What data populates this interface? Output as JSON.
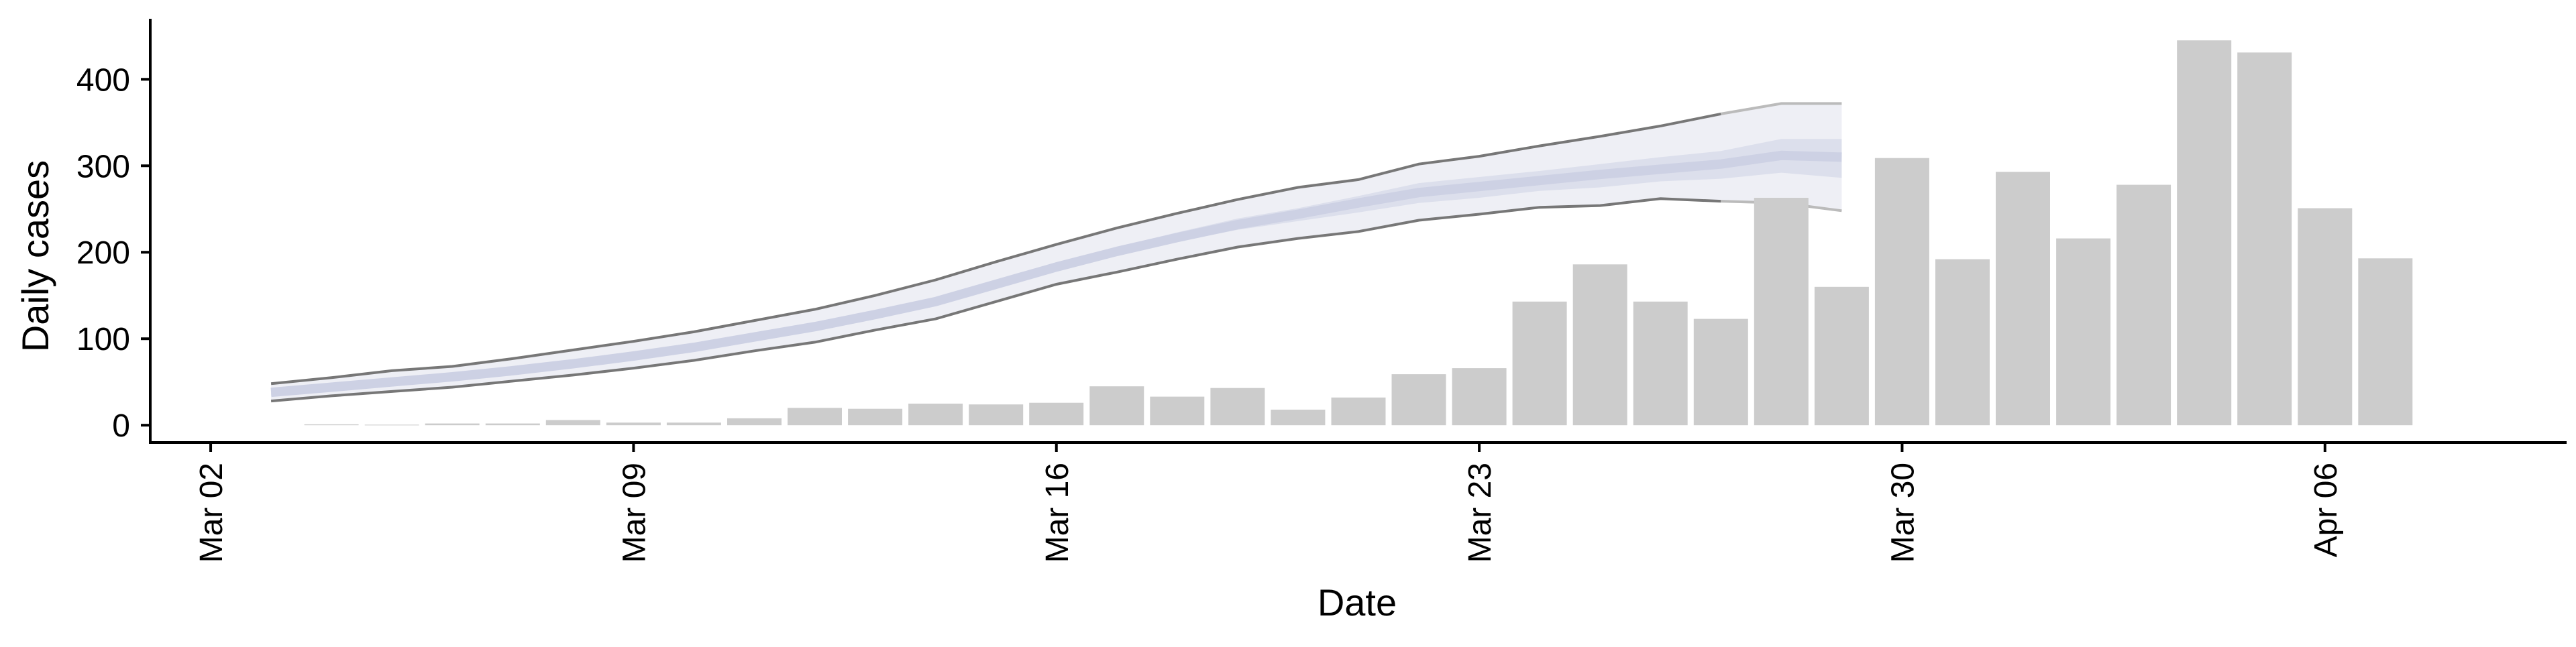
{
  "chart_data": {
    "type": "bar",
    "xlabel": "Date",
    "ylabel": "Daily cases",
    "ylim": [
      -20,
      470
    ],
    "y_ticks": [
      0,
      100,
      200,
      300,
      400
    ],
    "x_ticks": [
      {
        "date": "2020-03-02",
        "label": "Mar 02"
      },
      {
        "date": "2020-03-09",
        "label": "Mar 09"
      },
      {
        "date": "2020-03-16",
        "label": "Mar 16"
      },
      {
        "date": "2020-03-23",
        "label": "Mar 23"
      },
      {
        "date": "2020-03-30",
        "label": "Mar 30"
      },
      {
        "date": "2020-04-06",
        "label": "Apr 06"
      }
    ],
    "xlim": [
      "2020-03-01",
      "2020-04-10"
    ],
    "grid": false,
    "legend": "none",
    "bars": {
      "color": "#cccccc",
      "data": [
        {
          "date": "2020-03-04",
          "value": 1
        },
        {
          "date": "2020-03-05",
          "value": 0
        },
        {
          "date": "2020-03-06",
          "value": 2
        },
        {
          "date": "2020-03-07",
          "value": 2
        },
        {
          "date": "2020-03-08",
          "value": 6
        },
        {
          "date": "2020-03-09",
          "value": 3
        },
        {
          "date": "2020-03-10",
          "value": 3
        },
        {
          "date": "2020-03-11",
          "value": 8
        },
        {
          "date": "2020-03-12",
          "value": 20
        },
        {
          "date": "2020-03-13",
          "value": 19
        },
        {
          "date": "2020-03-14",
          "value": 25
        },
        {
          "date": "2020-03-15",
          "value": 24
        },
        {
          "date": "2020-03-16",
          "value": 26
        },
        {
          "date": "2020-03-17",
          "value": 45
        },
        {
          "date": "2020-03-18",
          "value": 33
        },
        {
          "date": "2020-03-19",
          "value": 43
        },
        {
          "date": "2020-03-20",
          "value": 18
        },
        {
          "date": "2020-03-21",
          "value": 32
        },
        {
          "date": "2020-03-22",
          "value": 59
        },
        {
          "date": "2020-03-23",
          "value": 66
        },
        {
          "date": "2020-03-24",
          "value": 143
        },
        {
          "date": "2020-03-25",
          "value": 186
        },
        {
          "date": "2020-03-26",
          "value": 143
        },
        {
          "date": "2020-03-27",
          "value": 123
        },
        {
          "date": "2020-03-28",
          "value": 263
        },
        {
          "date": "2020-03-29",
          "value": 160
        },
        {
          "date": "2020-03-30",
          "value": 309
        },
        {
          "date": "2020-03-31",
          "value": 192
        },
        {
          "date": "2020-04-01",
          "value": 293
        },
        {
          "date": "2020-04-02",
          "value": 216
        },
        {
          "date": "2020-04-03",
          "value": 278
        },
        {
          "date": "2020-04-04",
          "value": 445
        },
        {
          "date": "2020-04-05",
          "value": 431
        },
        {
          "date": "2020-04-06",
          "value": 251
        },
        {
          "date": "2020-04-07",
          "value": 193
        }
      ]
    },
    "ribbon": {
      "dates": [
        "2020-03-03",
        "2020-03-04",
        "2020-03-05",
        "2020-03-06",
        "2020-03-07",
        "2020-03-08",
        "2020-03-09",
        "2020-03-10",
        "2020-03-11",
        "2020-03-12",
        "2020-03-13",
        "2020-03-14",
        "2020-03-15",
        "2020-03-16",
        "2020-03-17",
        "2020-03-18",
        "2020-03-19",
        "2020-03-20",
        "2020-03-21",
        "2020-03-22",
        "2020-03-23",
        "2020-03-24",
        "2020-03-25",
        "2020-03-26",
        "2020-03-27",
        "2020-03-28",
        "2020-03-29"
      ],
      "outer_lower": [
        28,
        34,
        39,
        44,
        51,
        58,
        66,
        75,
        86,
        96,
        110,
        123,
        143,
        163,
        177,
        192,
        206,
        216,
        224,
        237,
        244,
        252,
        254,
        262,
        259,
        257,
        248
      ],
      "outer_upper": [
        48,
        55,
        63,
        68,
        77,
        87,
        97,
        108,
        121,
        134,
        150,
        168,
        189,
        209,
        228,
        245,
        261,
        275,
        284,
        302,
        311,
        323,
        334,
        346,
        360,
        372,
        372
      ],
      "inner_lower": [
        34,
        41,
        47,
        52,
        60,
        68,
        76,
        86,
        98,
        110,
        124,
        139,
        158,
        178,
        196,
        212,
        226,
        236,
        246,
        257,
        263,
        271,
        275,
        282,
        285,
        292,
        286
      ],
      "inner_upper": [
        42,
        48,
        54,
        60,
        67,
        75,
        84,
        94,
        106,
        118,
        133,
        148,
        168,
        188,
        206,
        223,
        239,
        251,
        265,
        280,
        287,
        294,
        302,
        310,
        317,
        331,
        331
      ],
      "median": [
        38,
        44,
        50,
        56,
        63,
        71,
        80,
        90,
        102,
        114,
        128,
        143,
        163,
        183,
        201,
        217,
        232,
        244,
        257,
        269,
        276,
        283,
        290,
        296,
        302,
        312,
        310
      ],
      "colors": {
        "outer_fill": "#eeeff5",
        "inner_fill": "#dcdfec",
        "median": "#cdd1e4",
        "bound_line": "#777777"
      }
    }
  }
}
